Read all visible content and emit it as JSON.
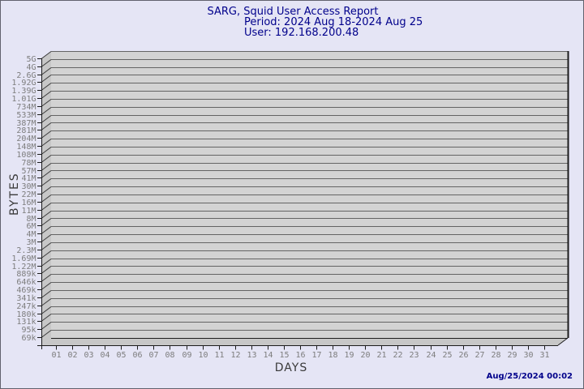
{
  "header": {
    "title": "SARG, Squid User Access Report",
    "period": "Period: 2024 Aug 18-2024 Aug 25",
    "user": "User: 192.168.200.48"
  },
  "footer": {
    "timestamp": "Aug/25/2024 00:02"
  },
  "chart_data": {
    "type": "bar",
    "projection": "3d",
    "title": "SARG, Squid User Access Report",
    "subtitle": [
      "Period: 2024 Aug 18-2024 Aug 25",
      "User: 192.168.200.48"
    ],
    "xlabel": "DAYS",
    "ylabel": "BYTES",
    "x_tick_labels": [
      "01",
      "02",
      "03",
      "04",
      "05",
      "06",
      "07",
      "08",
      "09",
      "10",
      "11",
      "12",
      "13",
      "14",
      "15",
      "16",
      "17",
      "18",
      "19",
      "20",
      "21",
      "22",
      "23",
      "24",
      "25",
      "26",
      "27",
      "28",
      "29",
      "30",
      "31"
    ],
    "y_tick_labels": [
      "5G",
      "4G",
      "2.6G",
      "1.92G",
      "1.39G",
      "1.01G",
      "734M",
      "533M",
      "387M",
      "281M",
      "204M",
      "148M",
      "108M",
      "78M",
      "57M",
      "41M",
      "30M",
      "22M",
      "16M",
      "11M",
      "8M",
      "6M",
      "4M",
      "3M",
      "2.3M",
      "1.69M",
      "1.22M",
      "889k",
      "646k",
      "469k",
      "341k",
      "247k",
      "180k",
      "131k",
      "95k",
      "69k"
    ],
    "values": [],
    "grid": true,
    "legend": false,
    "colors": {
      "background": "#e5e5f5",
      "page_border": "#62626e",
      "title_text": "#00008b",
      "timestamp_text": "#00008b",
      "plot_face": "#d3d3d3",
      "wall": "#c7c7c7",
      "grid_line": "#646464",
      "wall_grid_line": "#3a3a3a",
      "axis_line": "#1c1c1c",
      "tick_label": "#7d7d7d",
      "axis_title": "#3a3a3a"
    }
  }
}
